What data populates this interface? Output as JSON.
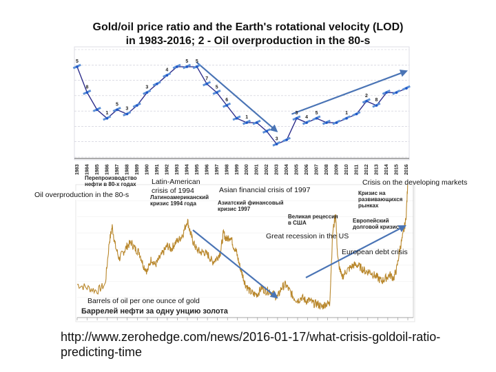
{
  "title": {
    "line1": "Gold/oil price ratio and the Earth's rotational velocity (LOD)",
    "line2": "in 1983-2016; 2 - Oil overproduction in the 80-s"
  },
  "annotations": {
    "oil_overproduction": "Oil overproduction in the 80-s",
    "latin_american": "Latin-American\ncrisis of 1994",
    "asian": "Asian financial crisis of 1997",
    "developing": "Crisis on the developing markets",
    "great_recession": "Great recession in the US",
    "european_debt": "European debt crisis",
    "barrels": "Barrels of oil per one ounce of gold"
  },
  "russian_labels": {
    "overproduction": "Перепроизводство\nнефти в 80-х годах",
    "latin": "Латиноамериканский\nкризис 1994 года",
    "asian": "Азиатский финансовый\nкризис 1997",
    "recession": "Великая рецессия\nв США",
    "european": "Европейский\nдолговой кризис",
    "developing": "Кризис на\nразвивающихся\nрынках",
    "chart_caption": "Баррелей нефти за одну унцию золота"
  },
  "source_url": "http://www.zerohedge.com/news/2016-01-17/what-crisis-goldoil-ratio-\npredicting-time",
  "colors": {
    "lod_line": "#2e2e8a",
    "lod_marker": "#1e56c8",
    "ratio_line": "#b8862a",
    "trend_arrow": "#4a74b5",
    "grid": "#c8c8d4"
  },
  "chart_data": [
    {
      "type": "line",
      "name": "LOD",
      "x": [
        1983,
        1984,
        1985,
        1986,
        1987,
        1988,
        1989,
        1990,
        1991,
        1992,
        1993,
        1994,
        1995,
        1996,
        1997,
        1998,
        1999,
        2000,
        2001,
        2002,
        2003,
        2004,
        2005,
        2006,
        2007,
        2008,
        2009,
        2010,
        2011,
        2012,
        2013,
        2014,
        2015,
        2016
      ],
      "values": [
        2.6,
        2.0,
        1.6,
        1.4,
        1.6,
        1.5,
        1.7,
        2.0,
        2.2,
        2.4,
        2.6,
        2.6,
        2.6,
        2.2,
        2.0,
        1.7,
        1.4,
        1.3,
        1.3,
        1.1,
        0.8,
        0.9,
        1.4,
        1.3,
        1.4,
        1.3,
        1.3,
        1.4,
        1.5,
        1.8,
        1.7,
        2.0,
        2.0,
        2.1
      ],
      "point_labels": [
        "5",
        "8",
        "",
        "1",
        "5",
        "3",
        "",
        "3",
        "",
        "4",
        "",
        "5",
        "5",
        "7",
        "5",
        "6",
        "",
        "1",
        "",
        "",
        "3",
        "",
        "3",
        "4",
        "5",
        "",
        "",
        "1",
        "",
        "2",
        "8",
        "",
        "",
        ""
      ],
      "x_tick_labels": [
        "1983",
        "1984",
        "1985",
        "1986",
        "1987",
        "1988",
        "1989",
        "1990",
        "1991",
        "1992",
        "1993",
        "1994",
        "1995",
        "1996",
        "1997",
        "1998",
        "1999",
        "2000",
        "2001",
        "2002",
        "2003",
        "2004",
        "2005",
        "2006",
        "2007",
        "2008",
        "2009",
        "2010",
        "2011",
        "2012",
        "2013",
        "2014",
        "2015",
        "2016"
      ],
      "xlim": [
        1983,
        2016
      ],
      "ylim": [
        0.5,
        3.0
      ],
      "grid": true,
      "trend_arrows": [
        {
          "from": [
            1995.0,
            2.7
          ],
          "to": [
            2003.0,
            1.1
          ]
        },
        {
          "from": [
            2004.5,
            1.5
          ],
          "to": [
            2016.0,
            2.5
          ]
        }
      ]
    },
    {
      "type": "line",
      "name": "Barrels of oil per one ounce of gold",
      "x": [
        1983.0,
        1984.0,
        1985.0,
        1985.8,
        1986.2,
        1986.5,
        1986.8,
        1987.2,
        1987.6,
        1988.0,
        1988.4,
        1988.8,
        1989.2,
        1989.6,
        1990.0,
        1990.4,
        1990.8,
        1991.2,
        1991.6,
        1992.0,
        1992.4,
        1992.8,
        1993.2,
        1993.6,
        1994.0,
        1994.3,
        1994.6,
        1994.9,
        1995.3,
        1995.7,
        1996.1,
        1996.5,
        1996.9,
        1997.3,
        1997.6,
        1997.9,
        1998.3,
        1998.6,
        1998.9,
        1999.2,
        1999.5,
        1999.8,
        2000.2,
        2000.6,
        2001.0,
        2001.4,
        2001.8,
        2002.2,
        2002.6,
        2003.0,
        2003.4,
        2003.8,
        2004.2,
        2004.6,
        2005.0,
        2005.4,
        2005.8,
        2006.2,
        2006.6,
        2007.0,
        2007.4,
        2007.8,
        2008.2,
        2008.5,
        2008.8,
        2009.0,
        2009.4,
        2009.8,
        2010.2,
        2010.6,
        2011.0,
        2011.4,
        2011.8,
        2012.2,
        2012.6,
        2013.0,
        2013.4,
        2013.8,
        2014.2,
        2014.6,
        2014.9,
        2015.2,
        2015.5,
        2015.8,
        2016.0
      ],
      "values": [
        14,
        13,
        12,
        14,
        27,
        32,
        26,
        22,
        24,
        26,
        27,
        25,
        24,
        20,
        18,
        22,
        20,
        22,
        24,
        26,
        25,
        27,
        28,
        30,
        34,
        30,
        27,
        25,
        24,
        24,
        23,
        21,
        22,
        24,
        30,
        28,
        29,
        26,
        24,
        20,
        17,
        14,
        12,
        11,
        11,
        13,
        12,
        12,
        11,
        10,
        13,
        14,
        12,
        10,
        9,
        10,
        9,
        9,
        8,
        8,
        7,
        8,
        8,
        30,
        36,
        22,
        16,
        18,
        19,
        20,
        20,
        19,
        18,
        18,
        17,
        16,
        15,
        16,
        17,
        16,
        19,
        25,
        29,
        34,
        45
      ],
      "ylim": [
        5,
        45
      ],
      "xlim": [
        1983,
        2016
      ]
    }
  ]
}
